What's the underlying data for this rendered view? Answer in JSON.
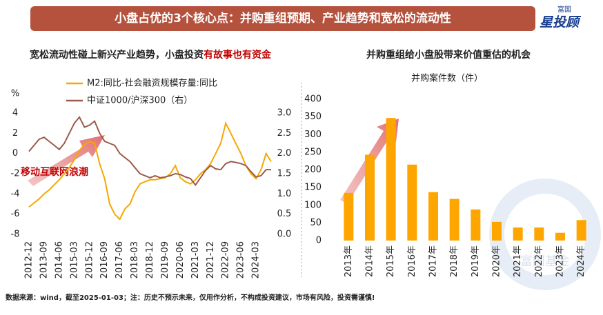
{
  "header": {
    "title": "小盘占优的3个核心点：并购重组预期、产业趋势和宽松的流动性",
    "logo_top": "富国",
    "logo_main": "星投顾",
    "watermark": "富国基金"
  },
  "footer": "数据来源：wind，截至2025-01-03；注：历史不预示未来，仅用作分析，不构成投资建议，市场有风险，投资需谨慎!",
  "chart_data": [
    {
      "type": "line",
      "title": "宽松流动性碰上新兴产业趋势，小盘投资",
      "title_highlight": "有故事也有资金",
      "y_label": "%",
      "annotations": [
        "移动互联网浪潮"
      ],
      "x": [
        "2012-12",
        "2013-03",
        "2013-06",
        "2013-09",
        "2013-12",
        "2014-03",
        "2014-06",
        "2014-09",
        "2014-12",
        "2015-03",
        "2015-06",
        "2015-09",
        "2015-12",
        "2016-03",
        "2016-06",
        "2016-09",
        "2016-12",
        "2017-03",
        "2017-06",
        "2017-09",
        "2017-12",
        "2018-03",
        "2018-06",
        "2018-09",
        "2018-12",
        "2019-03",
        "2019-06",
        "2019-09",
        "2019-12",
        "2020-03",
        "2020-06",
        "2020-09",
        "2020-12",
        "2021-03",
        "2021-06",
        "2021-09",
        "2021-12",
        "2022-03",
        "2022-06",
        "2022-09",
        "2022-12",
        "2023-03",
        "2023-06",
        "2023-09",
        "2023-12",
        "2024-03",
        "2024-06",
        "2024-09",
        "2024-12"
      ],
      "xticks": [
        "2012-12",
        "2013-09",
        "2014-06",
        "2015-03",
        "2015-12",
        "2016-09",
        "2017-06",
        "2018-03",
        "2018-12",
        "2019-09",
        "2020-06",
        "2021-03",
        "2021-12",
        "2022-09",
        "2023-06",
        "2024-03"
      ],
      "ylim": [
        -8,
        4
      ],
      "yticks": [
        -8,
        -6,
        -4,
        -2,
        0,
        2,
        4
      ],
      "y2lim": [
        0,
        3
      ],
      "y2ticks": [
        {
          "value": 0,
          "label": "0.0"
        },
        0.5,
        {
          "value": 1,
          "label": "1.0"
        },
        1.5,
        {
          "value": 2,
          "label": "2.0"
        },
        2.5,
        {
          "value": 3,
          "label": "3.0"
        }
      ],
      "series": [
        {
          "name": "M2:同比-社会融资规模存量:同比",
          "color": "#f5a800",
          "values": [
            -5.3,
            -4.9,
            -4.5,
            -4.0,
            -3.6,
            -3.1,
            -2.6,
            -2.0,
            -1.4,
            -0.6,
            0.3,
            0.9,
            1.2,
            1.0,
            -1.0,
            -2.5,
            -5.0,
            -6.0,
            -6.5,
            -5.5,
            -5.0,
            -3.8,
            -3.0,
            -2.8,
            -2.6,
            -2.6,
            -2.5,
            -2.4,
            -2.0,
            -1.2,
            -2.4,
            -2.8,
            -3.0,
            -2.6,
            -2.0,
            -1.6,
            -1.0,
            0.0,
            1.0,
            3.0,
            2.0,
            1.0,
            0.0,
            -1.2,
            -2.0,
            -2.5,
            -1.6,
            0.0,
            -0.8
          ]
        },
        {
          "name": "中证1000/沪深300（右）",
          "color": "#9b5a4a",
          "axis": "y2",
          "values": [
            2.05,
            2.2,
            2.35,
            2.4,
            2.3,
            2.2,
            2.1,
            2.25,
            2.5,
            2.75,
            2.9,
            2.65,
            2.7,
            2.8,
            2.5,
            2.3,
            2.25,
            2.2,
            2.0,
            1.9,
            1.8,
            1.65,
            1.5,
            1.45,
            1.4,
            1.45,
            1.4,
            1.42,
            1.45,
            1.5,
            1.48,
            1.42,
            1.38,
            1.22,
            1.4,
            1.58,
            1.7,
            1.62,
            1.6,
            1.75,
            1.8,
            1.78,
            1.75,
            1.7,
            1.55,
            1.42,
            1.45,
            1.6,
            1.6
          ]
        }
      ]
    },
    {
      "type": "bar",
      "title": "并购重组给小盘股带来价值重估的机会",
      "y_label": "并购案件数（件）",
      "color": "#ffa500",
      "categories": [
        "2013年",
        "2014年",
        "2015年",
        "2016年",
        "2017年",
        "2018年",
        "2019年",
        "2020年",
        "2021年",
        "2022年",
        "2023年",
        "2024年"
      ],
      "values": [
        135,
        243,
        347,
        215,
        137,
        118,
        88,
        53,
        37,
        37,
        22,
        58
      ],
      "ylim": [
        0,
        400
      ],
      "yticks": [
        0,
        50,
        100,
        150,
        200,
        250,
        300,
        350,
        400
      ]
    }
  ]
}
